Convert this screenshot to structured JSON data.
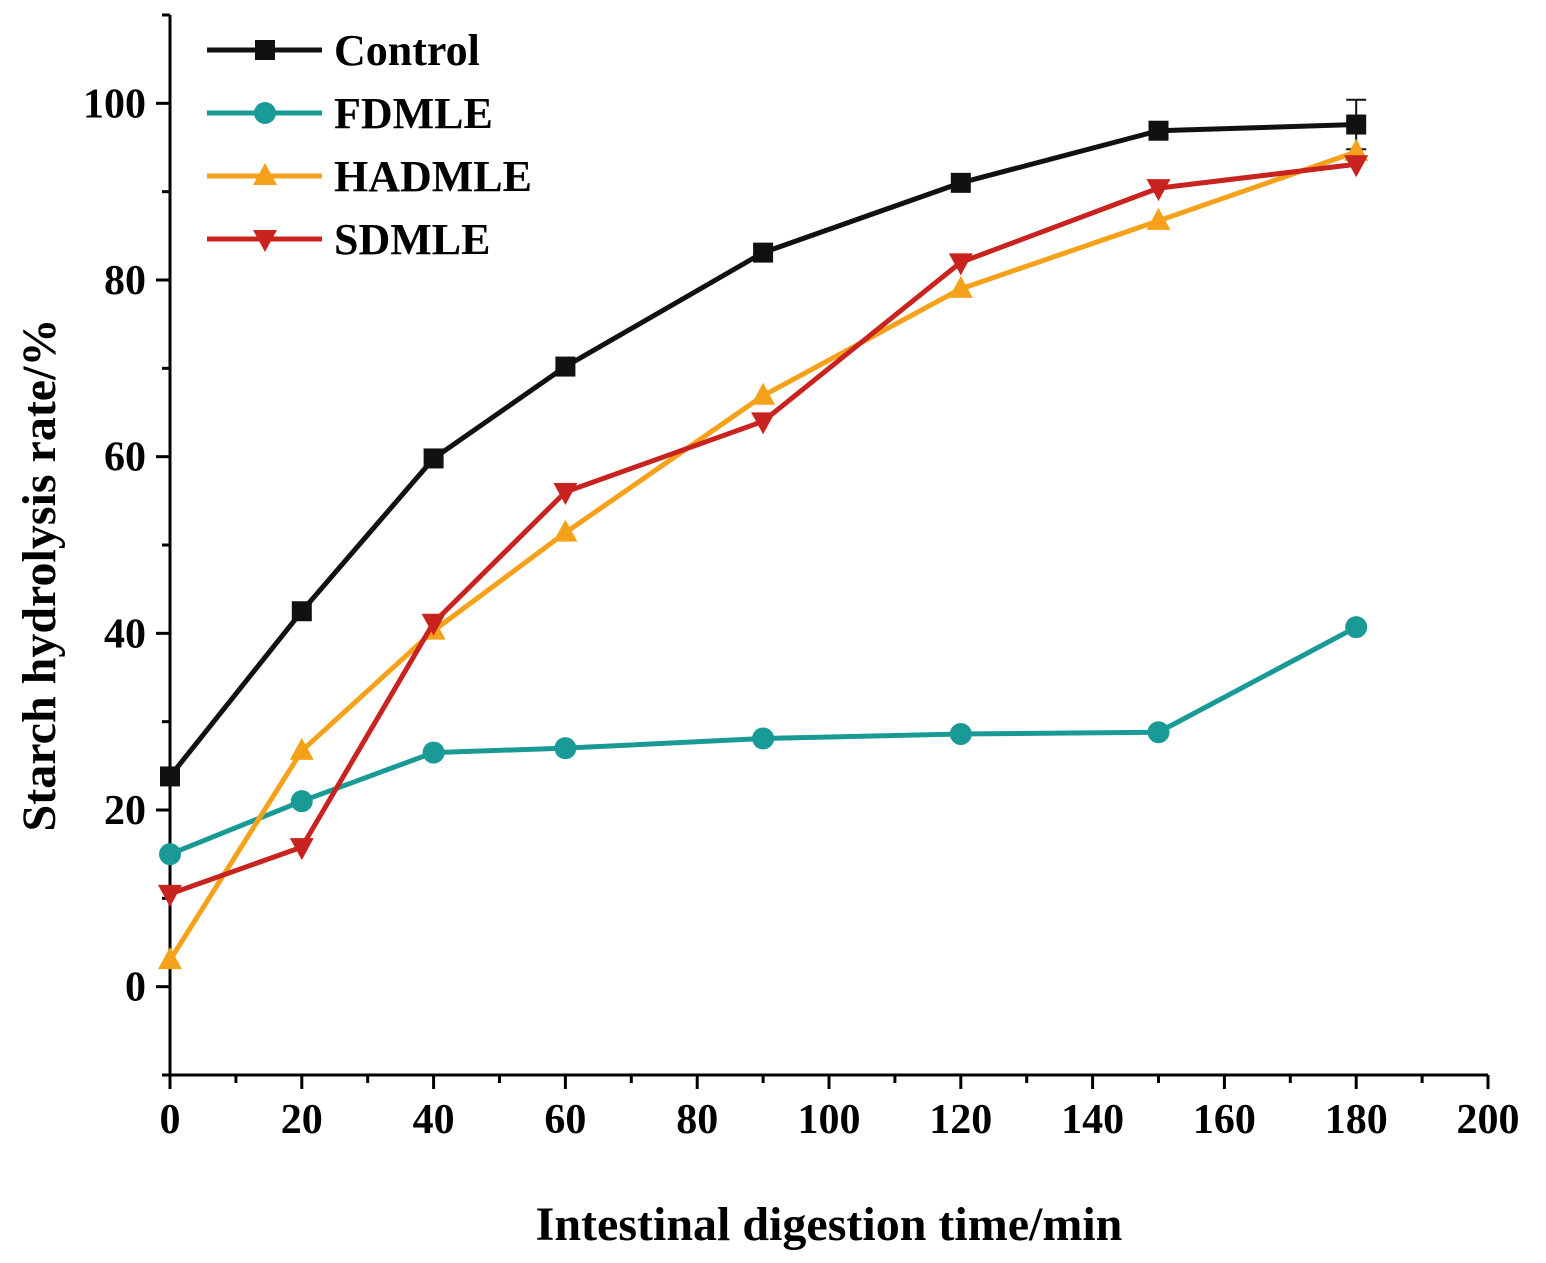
{
  "chart_data": {
    "type": "line",
    "title": "",
    "xlabel": "Intestinal digestion time/min",
    "ylabel": "Starch hydrolysis rate/%",
    "xlim": [
      0,
      200
    ],
    "ylim": [
      -10,
      110
    ],
    "xticks": [
      "0",
      "20",
      "40",
      "60",
      "80",
      "100",
      "120",
      "140",
      "160",
      "180",
      "200"
    ],
    "yticks": [
      "0",
      "20",
      "40",
      "60",
      "80",
      "100"
    ],
    "grid": false,
    "legend_position": "top-left",
    "series": [
      {
        "name": "Control",
        "color": "#111111",
        "marker": "square",
        "x": [
          0,
          20,
          40,
          60,
          90,
          120,
          150,
          180
        ],
        "y": [
          23.8,
          42.5,
          59.8,
          70.2,
          83.1,
          91.0,
          96.9,
          97.6
        ],
        "error": [
          0,
          0,
          0,
          0,
          0,
          0,
          0,
          2.8
        ]
      },
      {
        "name": "FDMLE",
        "color": "#1a9a96",
        "marker": "circle",
        "x": [
          0,
          20,
          40,
          60,
          90,
          120,
          150,
          180
        ],
        "y": [
          15.0,
          21.0,
          26.5,
          27.0,
          28.1,
          28.6,
          28.8,
          40.7
        ],
        "error": [
          0,
          0,
          0,
          0,
          0,
          0,
          0,
          0
        ]
      },
      {
        "name": "HADMLE",
        "color": "#f5a21a",
        "marker": "triangle-up",
        "x": [
          0,
          20,
          40,
          60,
          90,
          120,
          150,
          180
        ],
        "y": [
          3.0,
          26.7,
          40.3,
          51.4,
          66.9,
          79.0,
          86.7,
          94.5
        ],
        "error": [
          0,
          0,
          0,
          0,
          0,
          0,
          0,
          0
        ]
      },
      {
        "name": "SDMLE",
        "color": "#c8231f",
        "marker": "triangle-down",
        "x": [
          0,
          20,
          40,
          60,
          90,
          120,
          150,
          180
        ],
        "y": [
          10.5,
          15.8,
          41.2,
          56.0,
          64.0,
          82.0,
          90.4,
          93.1
        ],
        "error": [
          0,
          0,
          0,
          0,
          0,
          0,
          0,
          0
        ]
      }
    ]
  }
}
